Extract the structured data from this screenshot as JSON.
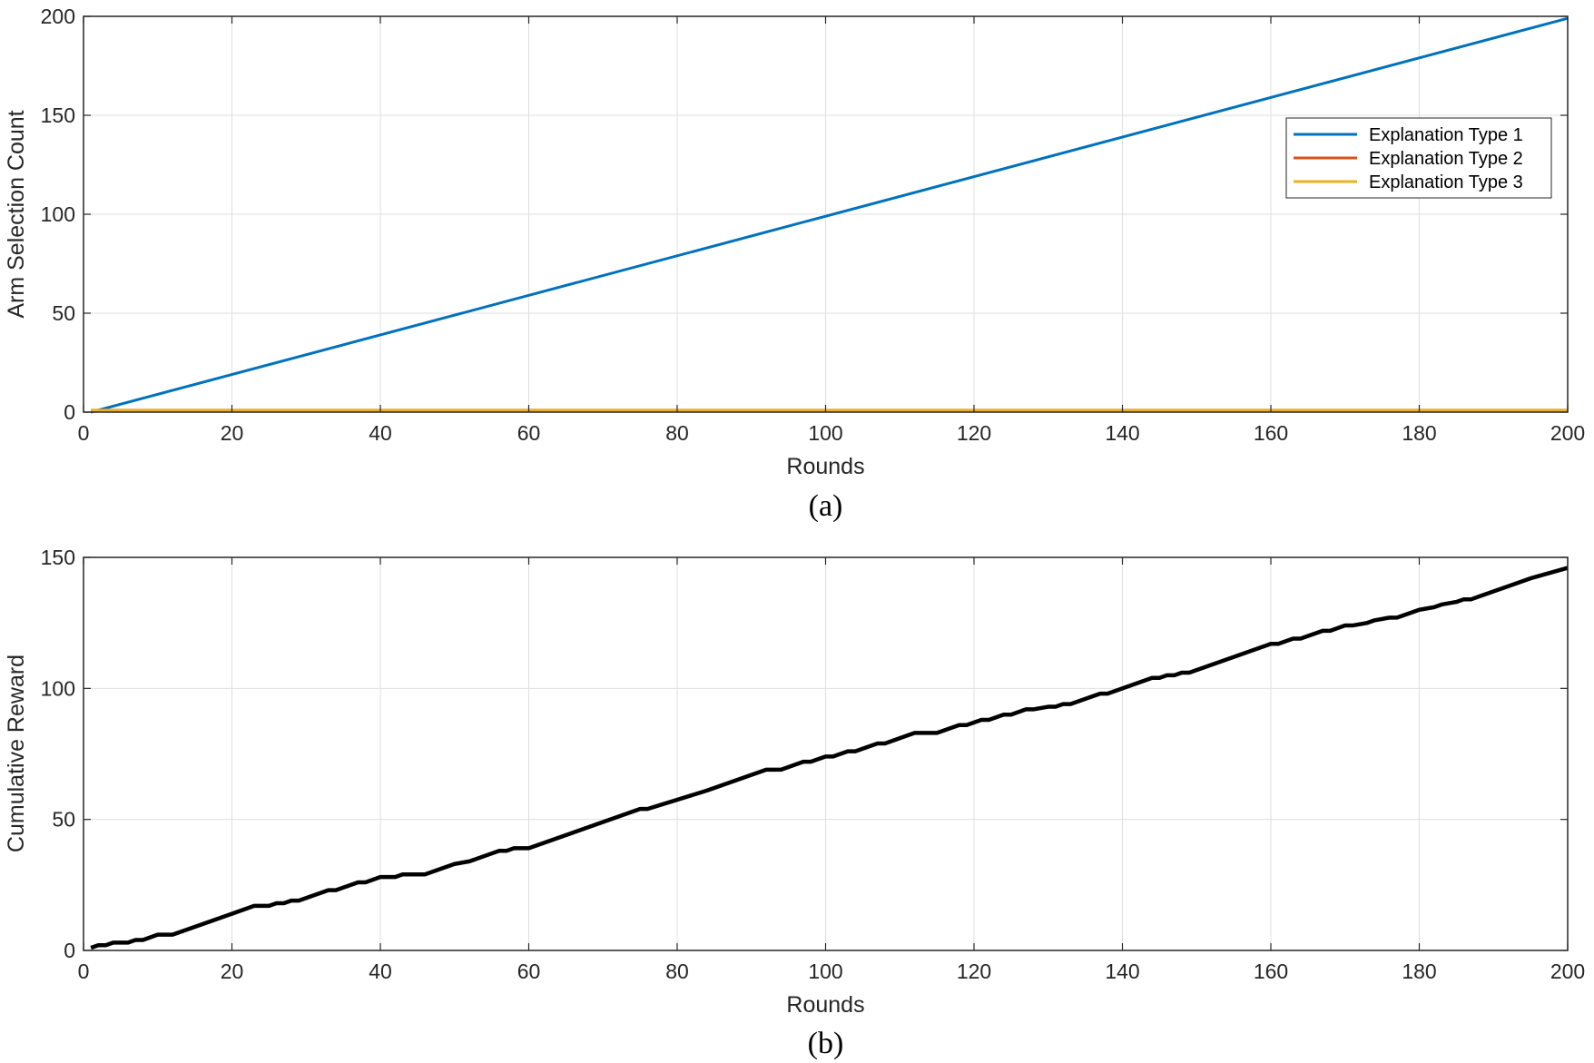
{
  "chart_data": [
    {
      "type": "line",
      "id": "a",
      "caption": "(a)",
      "title": "",
      "xlabel": "Rounds",
      "ylabel": "Arm Selection Count",
      "xlim": [
        0,
        200
      ],
      "ylim": [
        0,
        200
      ],
      "xticks": [
        0,
        20,
        40,
        60,
        80,
        100,
        120,
        140,
        160,
        180,
        200
      ],
      "yticks": [
        0,
        50,
        100,
        150,
        200
      ],
      "grid": true,
      "legend_position": "top-right",
      "series": [
        {
          "name": "Explanation Type 1",
          "color": "#0072BD",
          "x": [
            1,
            200
          ],
          "y": [
            0,
            199
          ]
        },
        {
          "name": "Explanation Type 2",
          "color": "#D95319",
          "x": [
            1,
            200
          ],
          "y": [
            1,
            1
          ]
        },
        {
          "name": "Explanation Type 3",
          "color": "#EDB120",
          "x": [
            1,
            200
          ],
          "y": [
            1,
            1
          ]
        }
      ]
    },
    {
      "type": "line",
      "id": "b",
      "caption": "(b)",
      "title": "",
      "xlabel": "Rounds",
      "ylabel": "Cumulative Reward",
      "xlim": [
        0,
        200
      ],
      "ylim": [
        0,
        150
      ],
      "xticks": [
        0,
        20,
        40,
        60,
        80,
        100,
        120,
        140,
        160,
        180,
        200
      ],
      "yticks": [
        0,
        50,
        100,
        150
      ],
      "grid": true,
      "series": [
        {
          "name": "Cumulative Reward",
          "color": "#000000",
          "x": [
            1,
            2,
            3,
            4,
            6,
            7,
            8,
            10,
            12,
            20,
            23,
            25,
            26,
            27,
            28,
            29,
            33,
            34,
            36,
            37,
            38,
            40,
            41,
            42,
            43,
            44,
            46,
            50,
            52,
            56,
            57,
            58,
            60,
            65,
            66,
            75,
            76,
            84,
            85,
            92,
            94,
            97,
            98,
            100,
            101,
            103,
            104,
            107,
            108,
            111,
            112,
            114,
            115,
            118,
            119,
            121,
            122,
            124,
            125,
            127,
            128,
            130,
            131,
            132,
            133,
            137,
            138,
            144,
            145,
            146,
            147,
            148,
            149,
            160,
            161,
            163,
            164,
            167,
            168,
            170,
            171,
            173,
            174,
            176,
            177,
            179,
            180,
            182,
            183,
            185,
            186,
            187,
            188,
            194,
            195,
            200
          ],
          "y": [
            1,
            2,
            2,
            3,
            3,
            4,
            4,
            6,
            6,
            14,
            17,
            17,
            18,
            18,
            19,
            19,
            23,
            23,
            25,
            26,
            26,
            28,
            28,
            28,
            29,
            29,
            29,
            33,
            34,
            38,
            38,
            39,
            39,
            44,
            45,
            54,
            54,
            61,
            62,
            69,
            69,
            72,
            72,
            74,
            74,
            76,
            76,
            79,
            79,
            82,
            83,
            83,
            83,
            86,
            86,
            88,
            88,
            90,
            90,
            92,
            92,
            93,
            93,
            94,
            94,
            98,
            98,
            104,
            104,
            105,
            105,
            106,
            106,
            117,
            117,
            119,
            119,
            122,
            122,
            124,
            124,
            125,
            126,
            127,
            127,
            129,
            130,
            131,
            132,
            133,
            134,
            134,
            135,
            141,
            142,
            146
          ]
        }
      ]
    }
  ]
}
